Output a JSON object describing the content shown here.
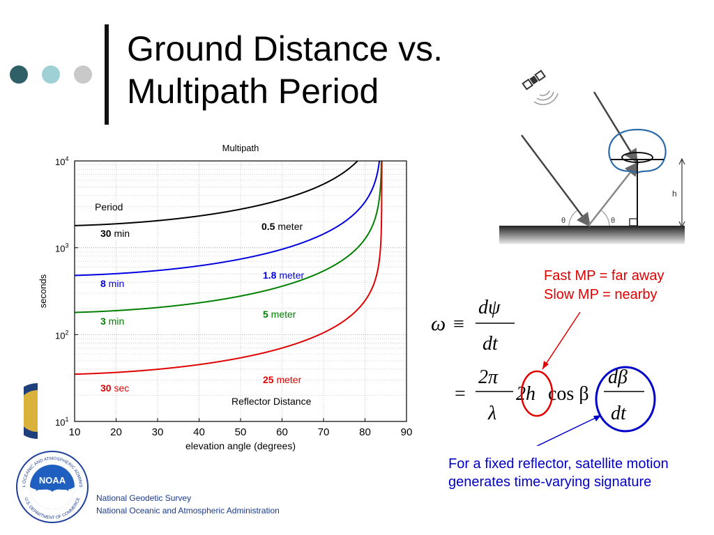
{
  "slide": {
    "title_line1": "Ground Distance vs.",
    "title_line2": "Multipath Period",
    "dot_colors": [
      "#2f5f67",
      "#9fd0d6",
      "#c9c9c9"
    ]
  },
  "chart_data": {
    "type": "line",
    "title": "Multipath",
    "xlabel": "elevation angle (degrees)",
    "ylabel": "seconds",
    "xlim": [
      10,
      90
    ],
    "ylim": [
      10,
      10000
    ],
    "yscale": "log",
    "x_ticks": [
      "10",
      "20",
      "30",
      "40",
      "50",
      "60",
      "70",
      "80",
      "90"
    ],
    "y_ticks": [
      {
        "value": 10,
        "base": "10",
        "exp": "1"
      },
      {
        "value": 100,
        "base": "10",
        "exp": "2"
      },
      {
        "value": 1000,
        "base": "10",
        "exp": "3"
      },
      {
        "value": 10000,
        "base": "10",
        "exp": "4"
      }
    ],
    "grid": true,
    "annotations": {
      "period_header": "Period",
      "distance_header": "Reflector Distance"
    },
    "series": [
      {
        "distance_num": "0.5",
        "distance_unit": " meter",
        "period_num": "30",
        "period_unit": " min",
        "color": "#000000",
        "h_m": 0.5,
        "flat_seconds": 1800
      },
      {
        "distance_num": "1.8",
        "distance_unit": " meter",
        "period_num": "8",
        "period_unit": " min",
        "color": "#0000e0",
        "h_m": 1.8,
        "flat_seconds": 480
      },
      {
        "distance_num": "5",
        "distance_unit": " meter",
        "period_num": "3",
        "period_unit": " min",
        "color": "#008000",
        "h_m": 5,
        "flat_seconds": 180
      },
      {
        "distance_num": "25",
        "distance_unit": " meter",
        "period_num": "30",
        "period_unit": " sec",
        "color": "#e00000",
        "h_m": 25,
        "flat_seconds": 35
      }
    ]
  },
  "diagram": {
    "height_label": "h",
    "angle_label": "θ"
  },
  "notes": {
    "red_line1": "Fast MP = far away",
    "red_line2": "Slow MP = nearby",
    "blue": "For a fixed reflector, satellite motion generates time-varying signature",
    "red_color": "#e00000",
    "blue_color": "#0000c8"
  },
  "equation": {
    "omega": "ω",
    "equiv": "≡",
    "d_psi": "dψ",
    "dt": "dt",
    "equals": "=",
    "two_pi": "2π",
    "lambda": "λ",
    "two_h": "2h",
    "cos_beta": "cos β",
    "d_beta": "dβ"
  },
  "logo": {
    "text": "NOAA",
    "ring_top": "NATIONAL OCEANIC AND ATMOSPHERIC ADMINISTRATION",
    "ring_bottom": "U.S. DEPARTMENT OF COMMERCE"
  },
  "footer": {
    "line1": "National Geodetic Survey",
    "line2": "National Oceanic and Atmospheric Administration"
  }
}
